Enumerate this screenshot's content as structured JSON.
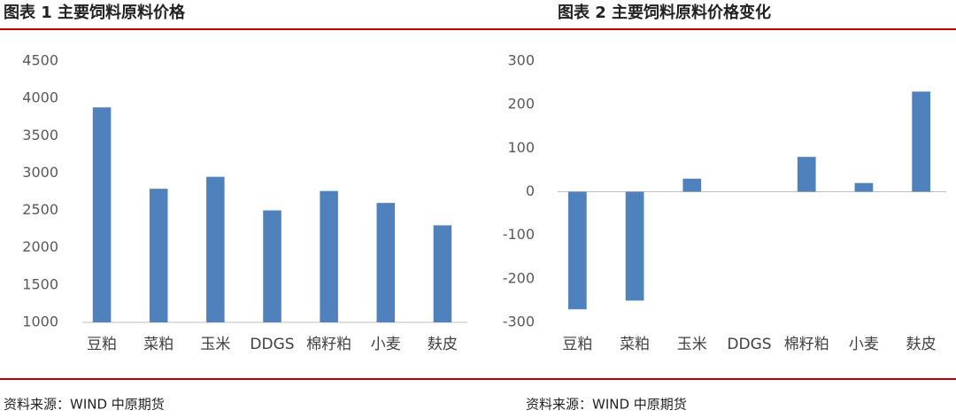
{
  "chart_data": [
    {
      "type": "bar",
      "title": "图表 1 主要饲料原料价格",
      "categories": [
        "豆粕",
        "菜粕",
        "玉米",
        "DDGS",
        "棉籽粕",
        "小麦",
        "麸皮"
      ],
      "values": [
        3880,
        2790,
        2950,
        2500,
        2760,
        2600,
        2300
      ],
      "color": "#4f81bd",
      "ylim": [
        1000,
        4500
      ],
      "yticks": [
        1000,
        1500,
        2000,
        2500,
        3000,
        3500,
        4000,
        4500
      ],
      "grid": false,
      "source": "资料来源：WIND  中原期货"
    },
    {
      "type": "bar",
      "title": "图表 2 主要饲料原料价格变化",
      "categories": [
        "豆粕",
        "菜粕",
        "玉米",
        "DDGS",
        "棉籽粕",
        "小麦",
        "麸皮"
      ],
      "values": [
        -270,
        -250,
        30,
        0,
        80,
        20,
        230
      ],
      "color": "#4f81bd",
      "ylim": [
        -300,
        300
      ],
      "yticks": [
        -300,
        -200,
        -100,
        0,
        100,
        200,
        300
      ],
      "grid": false,
      "source": "资料来源：WIND  中原期货"
    }
  ]
}
